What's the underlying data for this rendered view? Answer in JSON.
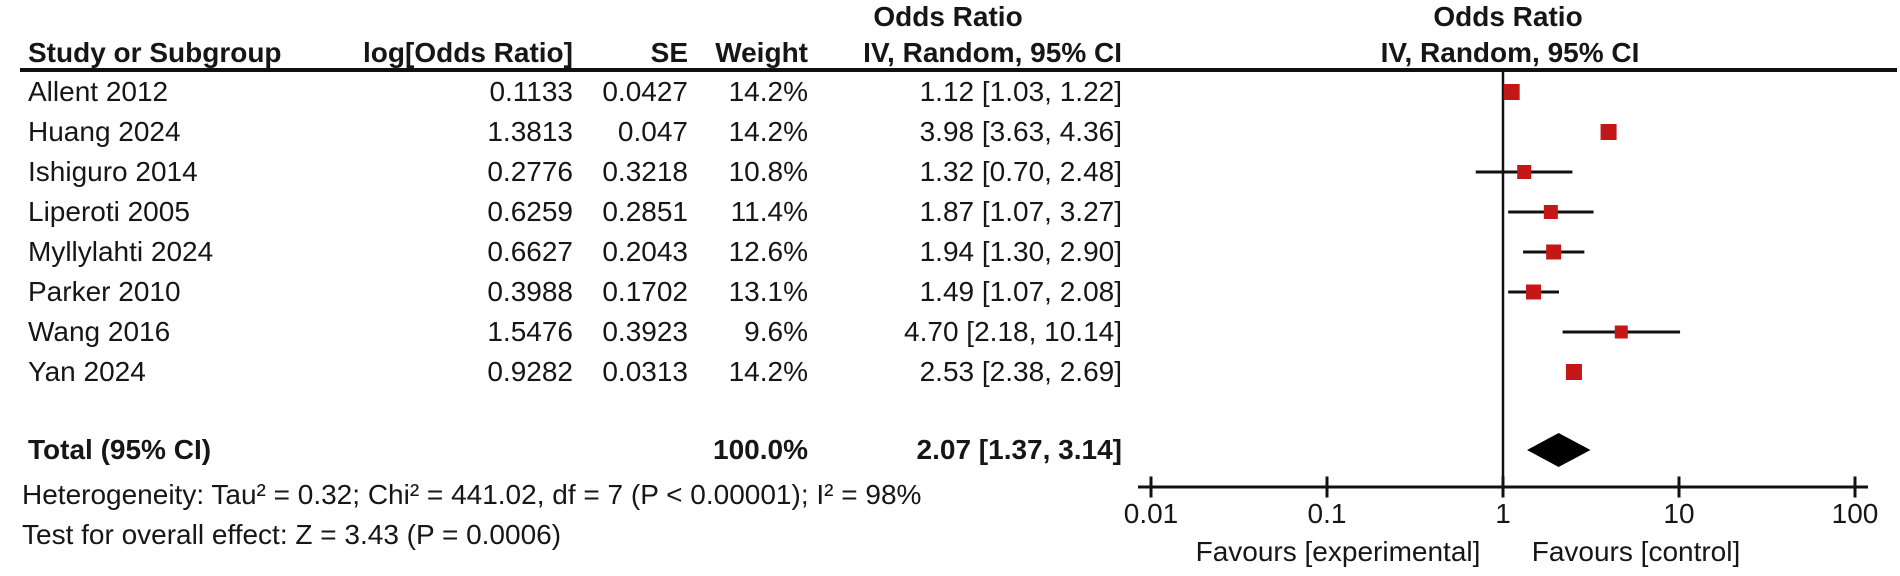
{
  "header": {
    "study": "Study or Subgroup",
    "log_or": "log[Odds Ratio]",
    "se": "SE",
    "weight": "Weight",
    "or_title_left": "Odds Ratio",
    "or_subtitle_left": "IV, Random, 95% CI",
    "or_title_right": "Odds Ratio",
    "or_subtitle_right": "IV, Random, 95% CI"
  },
  "chart_data": {
    "type": "forest",
    "effect_measure": "Odds Ratio",
    "model": "IV, Random, 95% CI",
    "x_axis": {
      "scale": "log",
      "range": [
        0.01,
        100
      ],
      "ticks": [
        0.01,
        0.1,
        1,
        10,
        100
      ],
      "tick_labels": [
        "0.01",
        "0.1",
        "1",
        "10",
        "100"
      ]
    },
    "favours_left": "Favours [experimental]",
    "favours_right": "Favours [control]",
    "studies": [
      {
        "name": "Allent 2012",
        "log_or": "0.1133",
        "se": "0.0427",
        "weight": "14.2%",
        "ci_text": "1.12 [1.03, 1.22]",
        "or": 1.12,
        "ci_low": 1.03,
        "ci_high": 1.22,
        "weight_pct": 14.2
      },
      {
        "name": "Huang 2024",
        "log_or": "1.3813",
        "se": "0.047",
        "weight": "14.2%",
        "ci_text": "3.98 [3.63, 4.36]",
        "or": 3.98,
        "ci_low": 3.63,
        "ci_high": 4.36,
        "weight_pct": 14.2
      },
      {
        "name": "Ishiguro 2014",
        "log_or": "0.2776",
        "se": "0.3218",
        "weight": "10.8%",
        "ci_text": "1.32 [0.70, 2.48]",
        "or": 1.32,
        "ci_low": 0.7,
        "ci_high": 2.48,
        "weight_pct": 10.8
      },
      {
        "name": "Liperoti 2005",
        "log_or": "0.6259",
        "se": "0.2851",
        "weight": "11.4%",
        "ci_text": "1.87 [1.07, 3.27]",
        "or": 1.87,
        "ci_low": 1.07,
        "ci_high": 3.27,
        "weight_pct": 11.4
      },
      {
        "name": "Myllylahti 2024",
        "log_or": "0.6627",
        "se": "0.2043",
        "weight": "12.6%",
        "ci_text": "1.94 [1.30, 2.90]",
        "or": 1.94,
        "ci_low": 1.3,
        "ci_high": 2.9,
        "weight_pct": 12.6
      },
      {
        "name": "Parker 2010",
        "log_or": "0.3988",
        "se": "0.1702",
        "weight": "13.1%",
        "ci_text": "1.49 [1.07, 2.08]",
        "or": 1.49,
        "ci_low": 1.07,
        "ci_high": 2.08,
        "weight_pct": 13.1
      },
      {
        "name": "Wang 2016",
        "log_or": "1.5476",
        "se": "0.3923",
        "weight": "9.6%",
        "ci_text": "4.70 [2.18, 10.14]",
        "or": 4.7,
        "ci_low": 2.18,
        "ci_high": 10.14,
        "weight_pct": 9.6
      },
      {
        "name": "Yan 2024",
        "log_or": "0.9282",
        "se": "0.0313",
        "weight": "14.2%",
        "ci_text": "2.53 [2.38, 2.69]",
        "or": 2.53,
        "ci_low": 2.38,
        "ci_high": 2.69,
        "weight_pct": 14.2
      }
    ],
    "total": {
      "label": "Total (95% CI)",
      "weight": "100.0%",
      "ci_text": "2.07 [1.37, 3.14]",
      "or": 2.07,
      "ci_low": 1.37,
      "ci_high": 3.14
    },
    "heterogeneity": "Heterogeneity: Tau² = 0.32; Chi² = 441.02, df = 7 (P < 0.00001); I² = 98%",
    "overall_effect": "Test for overall effect: Z = 3.43 (P = 0.0006)",
    "marker_color": "#c51717",
    "line_color": "#111111",
    "diamond_color": "#000000"
  }
}
